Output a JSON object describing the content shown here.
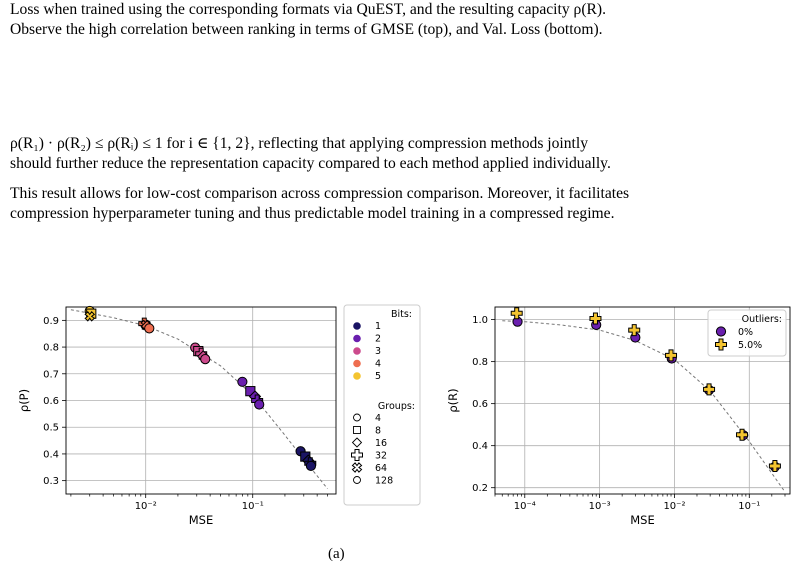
{
  "text": {
    "p1_line1": "Loss when trained using the corresponding formats via QuEST, and the resulting capacity ρ(R).",
    "p1_line2": "Observe the high correlation between ranking in terms of GMSE (top), and Val. Loss (bottom).",
    "p2_line1": "ρ(R₁) · ρ(R₂) ≤ ρ(Rᵢ) ≤ 1  for i ∈ {1, 2}, reflecting that applying compression methods jointly",
    "p2_line2": "should further reduce the representation capacity compared to each method applied individually.",
    "p3_line1": "This result allows for low-cost comparison across compression comparison. Moreover, it facilitates",
    "p3_line2": "compression hyperparameter tuning and thus predictable model training in a compressed regime.",
    "caption_fragment": "(a)"
  },
  "chart_data": [
    {
      "type": "scatter",
      "xlabel": "MSE",
      "ylabel": "ρ(P)",
      "xscale": "log",
      "xlim": [
        0.0018,
        0.6
      ],
      "ylim": [
        0.25,
        0.95
      ],
      "xticks": [
        {
          "value": 0.01,
          "label": "10⁻²"
        },
        {
          "value": 0.1,
          "label": "10⁻¹"
        }
      ],
      "yticks": [
        0.3,
        0.4,
        0.5,
        0.6,
        0.7,
        0.8,
        0.9
      ],
      "grid": true,
      "legend_position": "outside-right",
      "legend": {
        "bits_title": "Bits:",
        "bits": [
          {
            "label": "1",
            "color": "#1a1464"
          },
          {
            "label": "2",
            "color": "#6a1fae"
          },
          {
            "label": "3",
            "color": "#cc4a8c"
          },
          {
            "label": "4",
            "color": "#ee6e50"
          },
          {
            "label": "5",
            "color": "#f4c430"
          }
        ],
        "groups_title": "Groups:",
        "groups": [
          {
            "label": "4",
            "marker": "circle"
          },
          {
            "label": "8",
            "marker": "square"
          },
          {
            "label": "16",
            "marker": "diamond"
          },
          {
            "label": "32",
            "marker": "plus"
          },
          {
            "label": "64",
            "marker": "x"
          },
          {
            "label": "128",
            "marker": "circle"
          }
        ]
      },
      "fit_curve": [
        [
          0.002,
          0.94
        ],
        [
          0.005,
          0.91
        ],
        [
          0.01,
          0.88
        ],
        [
          0.02,
          0.83
        ],
        [
          0.05,
          0.73
        ],
        [
          0.1,
          0.62
        ],
        [
          0.2,
          0.47
        ],
        [
          0.3,
          0.38
        ],
        [
          0.5,
          0.27
        ]
      ],
      "points": [
        {
          "x": 0.003,
          "y": 0.935,
          "bits": "5",
          "marker": "circle"
        },
        {
          "x": 0.0031,
          "y": 0.925,
          "bits": "5",
          "marker": "square"
        },
        {
          "x": 0.003,
          "y": 0.915,
          "bits": "5",
          "marker": "x"
        },
        {
          "x": 0.0097,
          "y": 0.888,
          "bits": "4",
          "marker": "plus"
        },
        {
          "x": 0.01,
          "y": 0.883,
          "bits": "4",
          "marker": "x"
        },
        {
          "x": 0.0103,
          "y": 0.878,
          "bits": "4",
          "marker": "diamond"
        },
        {
          "x": 0.0108,
          "y": 0.87,
          "bits": "4",
          "marker": "circle"
        },
        {
          "x": 0.029,
          "y": 0.798,
          "bits": "3",
          "marker": "circle"
        },
        {
          "x": 0.031,
          "y": 0.785,
          "bits": "3",
          "marker": "square"
        },
        {
          "x": 0.033,
          "y": 0.775,
          "bits": "3",
          "marker": "plus"
        },
        {
          "x": 0.0345,
          "y": 0.765,
          "bits": "3",
          "marker": "diamond"
        },
        {
          "x": 0.036,
          "y": 0.755,
          "bits": "3",
          "marker": "circle"
        },
        {
          "x": 0.08,
          "y": 0.67,
          "bits": "2",
          "marker": "circle"
        },
        {
          "x": 0.095,
          "y": 0.635,
          "bits": "2",
          "marker": "square"
        },
        {
          "x": 0.105,
          "y": 0.615,
          "bits": "2",
          "marker": "diamond"
        },
        {
          "x": 0.11,
          "y": 0.6,
          "bits": "2",
          "marker": "plus"
        },
        {
          "x": 0.115,
          "y": 0.585,
          "bits": "2",
          "marker": "circle"
        },
        {
          "x": 0.28,
          "y": 0.41,
          "bits": "1",
          "marker": "circle"
        },
        {
          "x": 0.31,
          "y": 0.39,
          "bits": "1",
          "marker": "square"
        },
        {
          "x": 0.33,
          "y": 0.375,
          "bits": "1",
          "marker": "diamond"
        },
        {
          "x": 0.345,
          "y": 0.365,
          "bits": "1",
          "marker": "plus"
        },
        {
          "x": 0.35,
          "y": 0.355,
          "bits": "1",
          "marker": "circle"
        }
      ]
    },
    {
      "type": "scatter",
      "xlabel": "MSE",
      "ylabel": "ρ(R)",
      "xscale": "log",
      "xlim": [
        4e-05,
        0.35
      ],
      "ylim": [
        0.17,
        1.06
      ],
      "xticks": [
        {
          "value": 0.0001,
          "label": "10⁻⁴"
        },
        {
          "value": 0.001,
          "label": "10⁻³"
        },
        {
          "value": 0.01,
          "label": "10⁻²"
        },
        {
          "value": 0.1,
          "label": "10⁻¹"
        }
      ],
      "yticks": [
        0.2,
        0.4,
        0.6,
        0.8,
        1.0
      ],
      "ytick_labels": [
        "0.2",
        "0.4",
        "0.6",
        "0.8",
        "1.0"
      ],
      "grid": true,
      "legend_position": "top-right",
      "legend": {
        "title": "Outliers:",
        "entries": [
          {
            "label": "0%",
            "color": "#6a1fae",
            "marker": "circle"
          },
          {
            "label": "5.0%",
            "color": "#f4c430",
            "marker": "plus"
          }
        ]
      },
      "fit_curve": [
        [
          5e-05,
          0.995
        ],
        [
          0.0001,
          0.99
        ],
        [
          0.0003,
          0.975
        ],
        [
          0.001,
          0.95
        ],
        [
          0.003,
          0.9
        ],
        [
          0.01,
          0.81
        ],
        [
          0.03,
          0.66
        ],
        [
          0.1,
          0.42
        ],
        [
          0.3,
          0.18
        ]
      ],
      "points": [
        {
          "x": 8e-05,
          "y": 0.99,
          "series": "0%"
        },
        {
          "x": 7.8e-05,
          "y": 1.03,
          "series": "5.0%"
        },
        {
          "x": 0.0009,
          "y": 0.975,
          "series": "0%"
        },
        {
          "x": 0.00088,
          "y": 1.005,
          "series": "5.0%"
        },
        {
          "x": 0.003,
          "y": 0.915,
          "series": "0%"
        },
        {
          "x": 0.0029,
          "y": 0.95,
          "series": "5.0%"
        },
        {
          "x": 0.0092,
          "y": 0.815,
          "series": "0%"
        },
        {
          "x": 0.009,
          "y": 0.83,
          "series": "5.0%"
        },
        {
          "x": 0.029,
          "y": 0.665,
          "series": "0%"
        },
        {
          "x": 0.029,
          "y": 0.668,
          "series": "5.0%"
        },
        {
          "x": 0.083,
          "y": 0.45,
          "series": "0%"
        },
        {
          "x": 0.08,
          "y": 0.452,
          "series": "5.0%"
        },
        {
          "x": 0.22,
          "y": 0.3,
          "series": "0%"
        },
        {
          "x": 0.22,
          "y": 0.303,
          "series": "5.0%"
        }
      ]
    }
  ]
}
